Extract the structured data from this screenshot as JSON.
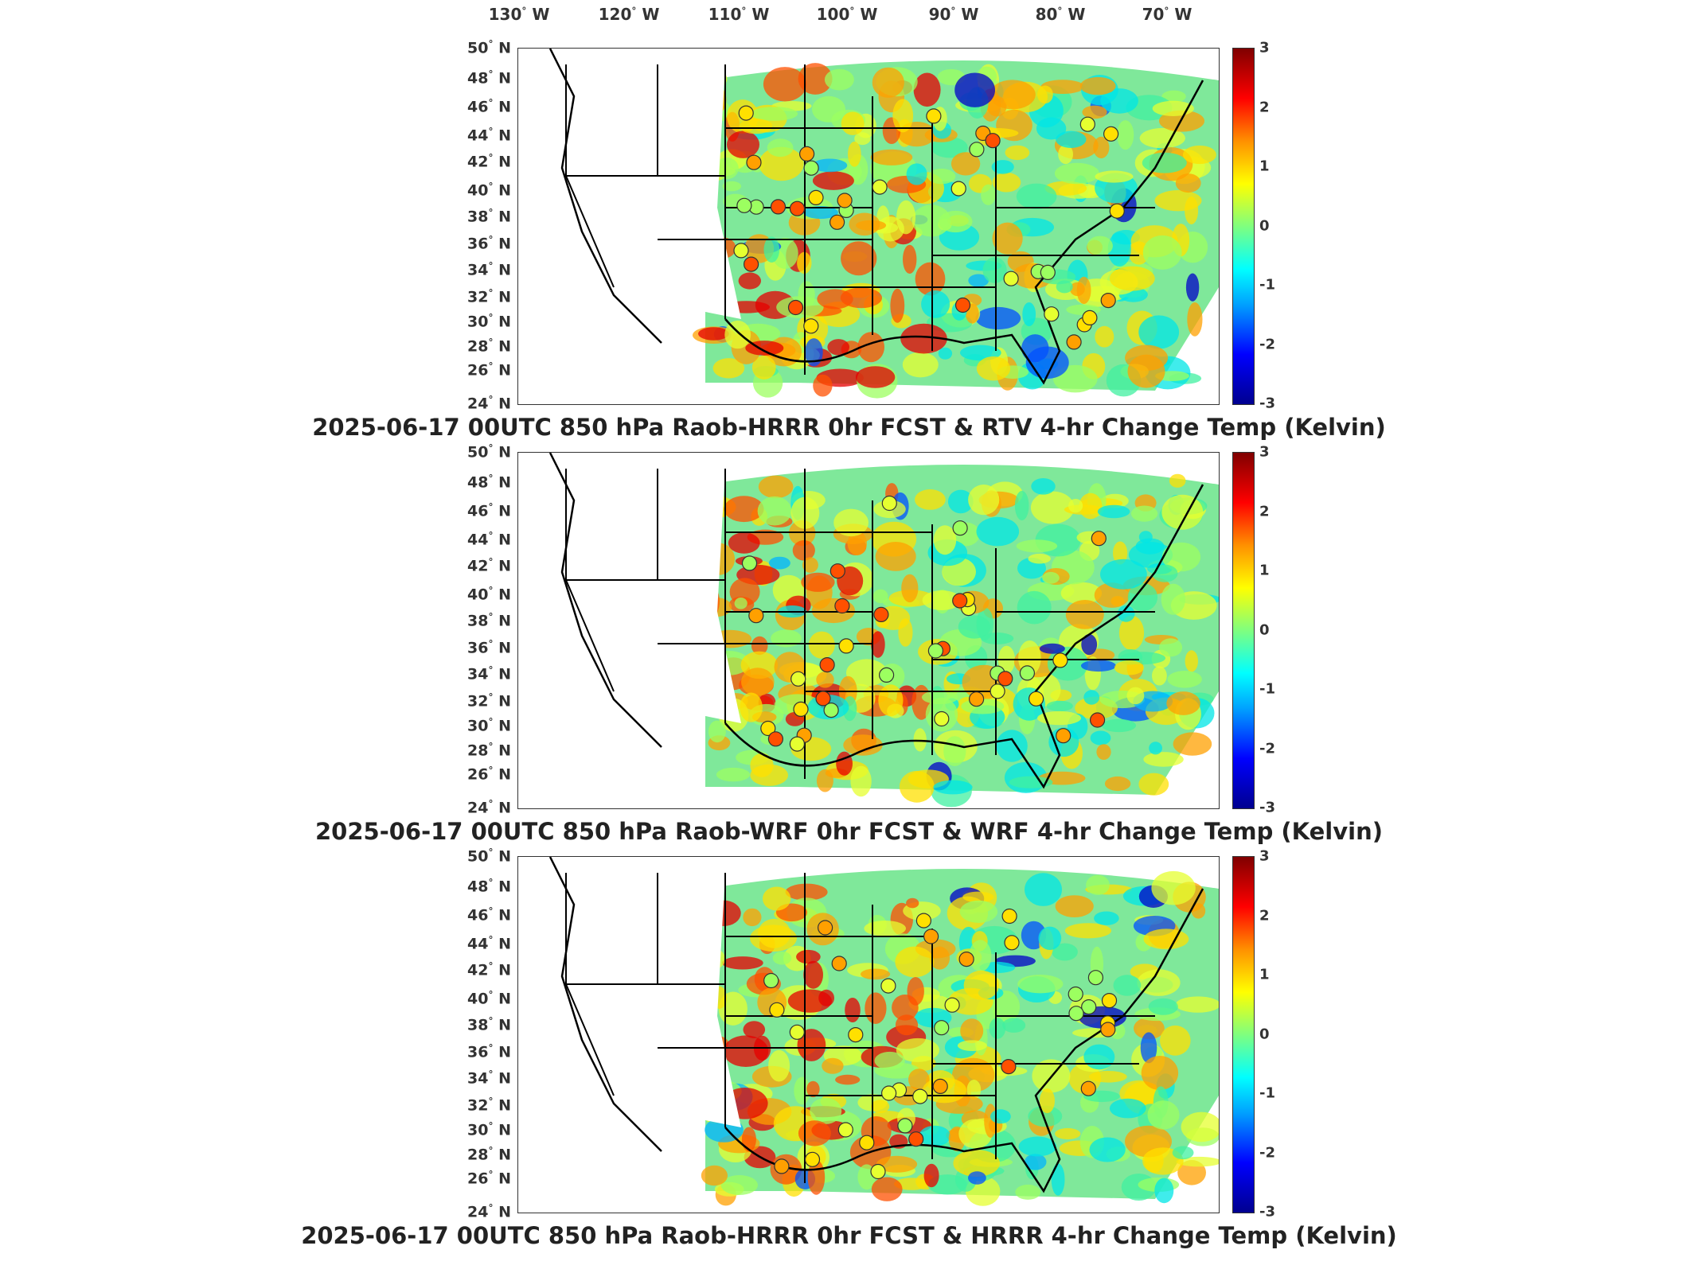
{
  "lon_ticks": [
    "130",
    "120",
    "110",
    "100",
    "90",
    "80",
    "70"
  ],
  "lon_suffix": "W",
  "lat_ticks": [
    "50",
    "48",
    "46",
    "44",
    "42",
    "40",
    "38",
    "36",
    "34",
    "32",
    "30",
    "28",
    "26",
    "24"
  ],
  "lat_suffix": "N",
  "colorbar": {
    "ticks": [
      "3",
      "2",
      "1",
      "0",
      "-1",
      "-2",
      "-3"
    ],
    "min": -3,
    "max": 3
  },
  "panels": [
    {
      "title": "2025-06-17 00UTC 850 hPa Raob-HRRR 0hr FCST & RTV 4-hr Change Temp (Kelvin)"
    },
    {
      "title": "2025-06-17 00UTC 850 hPa Raob-WRF 0hr FCST & WRF 4-hr Change Temp (Kelvin)"
    },
    {
      "title": "2025-06-17 00UTC 850 hPa Raob-HRRR 0hr FCST & HRRR 4-hr Change Temp (Kelvin)"
    }
  ],
  "colors": {
    "frame": "#333333",
    "coast": "#000000"
  }
}
